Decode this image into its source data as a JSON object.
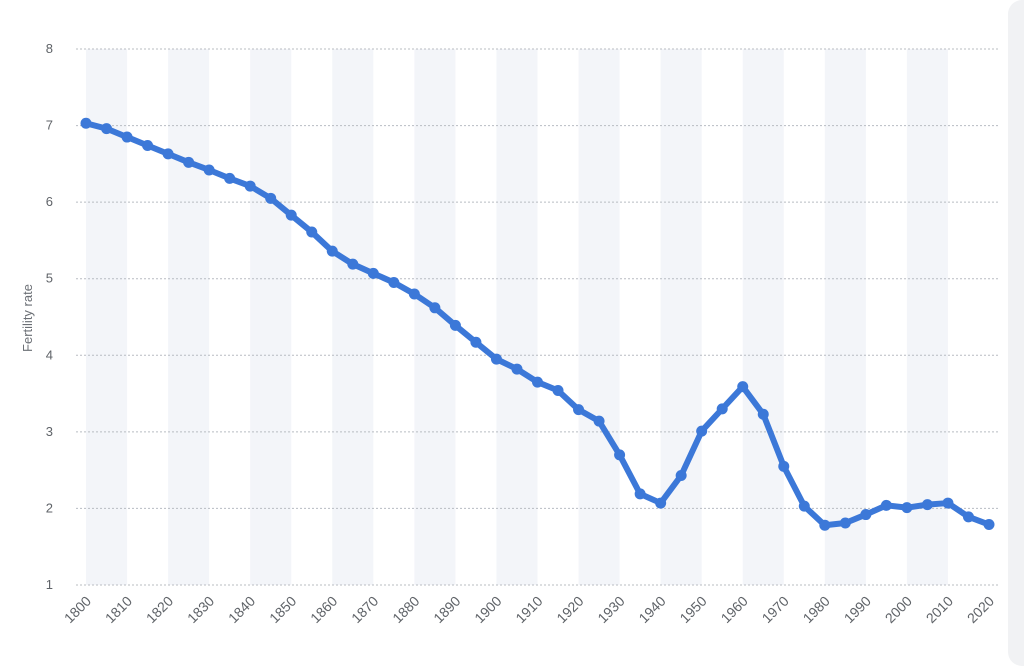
{
  "chart_data": {
    "type": "line",
    "ylabel": "Fertility rate",
    "xlabel": "",
    "ylim": [
      1,
      8
    ],
    "yticks": [
      1,
      2,
      3,
      4,
      5,
      6,
      7,
      8
    ],
    "xticks": [
      1800,
      1810,
      1820,
      1830,
      1840,
      1850,
      1860,
      1870,
      1880,
      1890,
      1900,
      1910,
      1920,
      1930,
      1940,
      1950,
      1960,
      1970,
      1980,
      1990,
      2000,
      2010,
      2020
    ],
    "x": [
      1800,
      1805,
      1810,
      1815,
      1820,
      1825,
      1830,
      1835,
      1840,
      1845,
      1850,
      1855,
      1860,
      1865,
      1870,
      1875,
      1880,
      1885,
      1890,
      1895,
      1900,
      1905,
      1910,
      1915,
      1920,
      1925,
      1930,
      1935,
      1940,
      1945,
      1950,
      1955,
      1960,
      1965,
      1970,
      1975,
      1980,
      1985,
      1990,
      1995,
      2000,
      2005,
      2010,
      2015,
      2020
    ],
    "series": [
      {
        "values": [
          7.03,
          6.96,
          6.85,
          6.74,
          6.63,
          6.52,
          6.42,
          6.31,
          6.21,
          6.05,
          5.83,
          5.61,
          5.36,
          5.19,
          5.07,
          4.95,
          4.8,
          4.62,
          4.39,
          4.17,
          3.95,
          3.82,
          3.65,
          3.54,
          3.29,
          3.14,
          2.7,
          2.19,
          2.07,
          2.43,
          3.01,
          3.3,
          3.59,
          3.23,
          2.55,
          2.03,
          1.78,
          1.81,
          1.92,
          2.04,
          2.01,
          2.05,
          2.07,
          1.89,
          1.79
        ]
      }
    ],
    "grid": true,
    "colors": {
      "line": "#3c78d8",
      "grid": "#b8bcc2",
      "band": "#f3f5f9"
    }
  }
}
